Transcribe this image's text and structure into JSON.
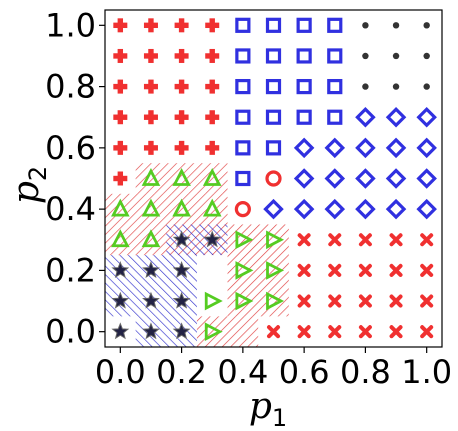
{
  "chart_data": {
    "type": "scatter",
    "title": "",
    "xlabel": "p",
    "xlabel_sub": "1",
    "ylabel": "p",
    "ylabel_sub": "2",
    "xlim": [
      -0.05,
      1.05
    ],
    "ylim": [
      -0.05,
      1.05
    ],
    "grid": false,
    "x_ticks": [
      "0.0",
      "0.2",
      "0.4",
      "0.6",
      "0.8",
      "1.0"
    ],
    "y_ticks": [
      "0.0",
      "0.2",
      "0.4",
      "0.6",
      "0.8",
      "1.0"
    ],
    "colors": {
      "plus": "#f03030",
      "square": "#3030e0",
      "dot": "#333333",
      "diamond": "#3030e0",
      "circle": "#f03030",
      "triangle_up": "#55cc22",
      "triangle_right": "#55cc22",
      "star": "#222244",
      "x_mark": "#f03030",
      "hatch_red": "#e04040",
      "hatch_blue": "#3030cc"
    },
    "series": [
      {
        "marker": "plus",
        "points": [
          [
            0.0,
            1.0
          ],
          [
            0.1,
            1.0
          ],
          [
            0.2,
            1.0
          ],
          [
            0.3,
            1.0
          ],
          [
            0.0,
            0.9
          ],
          [
            0.1,
            0.9
          ],
          [
            0.2,
            0.9
          ],
          [
            0.3,
            0.9
          ],
          [
            0.0,
            0.8
          ],
          [
            0.1,
            0.8
          ],
          [
            0.2,
            0.8
          ],
          [
            0.3,
            0.8
          ],
          [
            0.0,
            0.7
          ],
          [
            0.1,
            0.7
          ],
          [
            0.2,
            0.7
          ],
          [
            0.3,
            0.7
          ],
          [
            0.0,
            0.6
          ],
          [
            0.1,
            0.6
          ],
          [
            0.2,
            0.6
          ],
          [
            0.3,
            0.6
          ],
          [
            0.0,
            0.5
          ]
        ]
      },
      {
        "marker": "square",
        "points": [
          [
            0.4,
            1.0
          ],
          [
            0.5,
            1.0
          ],
          [
            0.6,
            1.0
          ],
          [
            0.7,
            1.0
          ],
          [
            0.4,
            0.9
          ],
          [
            0.5,
            0.9
          ],
          [
            0.6,
            0.9
          ],
          [
            0.7,
            0.9
          ],
          [
            0.4,
            0.8
          ],
          [
            0.5,
            0.8
          ],
          [
            0.6,
            0.8
          ],
          [
            0.7,
            0.8
          ],
          [
            0.4,
            0.7
          ],
          [
            0.5,
            0.7
          ],
          [
            0.6,
            0.7
          ],
          [
            0.7,
            0.7
          ],
          [
            0.4,
            0.6
          ],
          [
            0.5,
            0.6
          ],
          [
            0.4,
            0.5
          ]
        ]
      },
      {
        "marker": "dot",
        "points": [
          [
            0.8,
            1.0
          ],
          [
            0.9,
            1.0
          ],
          [
            1.0,
            1.0
          ],
          [
            0.8,
            0.9
          ],
          [
            0.9,
            0.9
          ],
          [
            1.0,
            0.9
          ],
          [
            0.8,
            0.8
          ],
          [
            0.9,
            0.8
          ],
          [
            1.0,
            0.8
          ]
        ]
      },
      {
        "marker": "diamond",
        "points": [
          [
            0.8,
            0.7
          ],
          [
            0.9,
            0.7
          ],
          [
            1.0,
            0.7
          ],
          [
            0.6,
            0.6
          ],
          [
            0.7,
            0.6
          ],
          [
            0.8,
            0.6
          ],
          [
            0.9,
            0.6
          ],
          [
            1.0,
            0.6
          ],
          [
            0.6,
            0.5
          ],
          [
            0.7,
            0.5
          ],
          [
            0.8,
            0.5
          ],
          [
            0.9,
            0.5
          ],
          [
            1.0,
            0.5
          ],
          [
            0.5,
            0.4
          ],
          [
            0.6,
            0.4
          ],
          [
            0.7,
            0.4
          ],
          [
            0.8,
            0.4
          ],
          [
            0.9,
            0.4
          ],
          [
            1.0,
            0.4
          ]
        ]
      },
      {
        "marker": "circle",
        "points": [
          [
            0.5,
            0.5
          ],
          [
            0.4,
            0.4
          ]
        ]
      },
      {
        "marker": "triangle_up",
        "points": [
          [
            0.1,
            0.5
          ],
          [
            0.2,
            0.5
          ],
          [
            0.3,
            0.5
          ],
          [
            0.0,
            0.4
          ],
          [
            0.1,
            0.4
          ],
          [
            0.2,
            0.4
          ],
          [
            0.3,
            0.4
          ],
          [
            0.0,
            0.3
          ],
          [
            0.1,
            0.3
          ]
        ]
      },
      {
        "marker": "triangle_right",
        "points": [
          [
            0.4,
            0.3
          ],
          [
            0.5,
            0.3
          ],
          [
            0.4,
            0.2
          ],
          [
            0.5,
            0.2
          ],
          [
            0.4,
            0.1
          ],
          [
            0.5,
            0.1
          ],
          [
            0.3,
            0.1
          ],
          [
            0.3,
            0.0
          ]
        ]
      },
      {
        "marker": "star",
        "points": [
          [
            0.2,
            0.3
          ],
          [
            0.3,
            0.3
          ],
          [
            0.0,
            0.2
          ],
          [
            0.1,
            0.2
          ],
          [
            0.2,
            0.2
          ],
          [
            0.0,
            0.1
          ],
          [
            0.1,
            0.1
          ],
          [
            0.2,
            0.1
          ],
          [
            0.0,
            0.0
          ],
          [
            0.1,
            0.0
          ],
          [
            0.2,
            0.0
          ]
        ]
      },
      {
        "marker": "x_mark",
        "points": [
          [
            0.6,
            0.3
          ],
          [
            0.7,
            0.3
          ],
          [
            0.8,
            0.3
          ],
          [
            0.9,
            0.3
          ],
          [
            1.0,
            0.3
          ],
          [
            0.6,
            0.2
          ],
          [
            0.7,
            0.2
          ],
          [
            0.8,
            0.2
          ],
          [
            0.9,
            0.2
          ],
          [
            1.0,
            0.2
          ],
          [
            0.6,
            0.1
          ],
          [
            0.7,
            0.1
          ],
          [
            0.8,
            0.1
          ],
          [
            0.9,
            0.1
          ],
          [
            1.0,
            0.1
          ],
          [
            0.5,
            0.0
          ],
          [
            0.6,
            0.0
          ],
          [
            0.7,
            0.0
          ],
          [
            0.8,
            0.0
          ],
          [
            0.9,
            0.0
          ],
          [
            1.0,
            0.0
          ]
        ]
      }
    ],
    "hatch_regions": [
      {
        "pattern": "red",
        "x": [
          0.05,
          0.35
        ],
        "y": [
          0.45,
          0.55
        ]
      },
      {
        "pattern": "red",
        "x": [
          -0.05,
          0.35
        ],
        "y": [
          0.25,
          0.45
        ]
      },
      {
        "pattern": "red",
        "x": [
          0.35,
          0.55
        ],
        "y": [
          0.05,
          0.35
        ]
      },
      {
        "pattern": "red",
        "x": [
          0.25,
          0.45
        ],
        "y": [
          -0.05,
          0.05
        ]
      },
      {
        "pattern": "blue",
        "x": [
          0.15,
          0.35
        ],
        "y": [
          0.25,
          0.35
        ]
      },
      {
        "pattern": "blue",
        "x": [
          -0.05,
          0.25
        ],
        "y": [
          0.05,
          0.25
        ]
      },
      {
        "pattern": "blue",
        "x": [
          0.05,
          0.25
        ],
        "y": [
          -0.05,
          0.05
        ]
      }
    ]
  }
}
